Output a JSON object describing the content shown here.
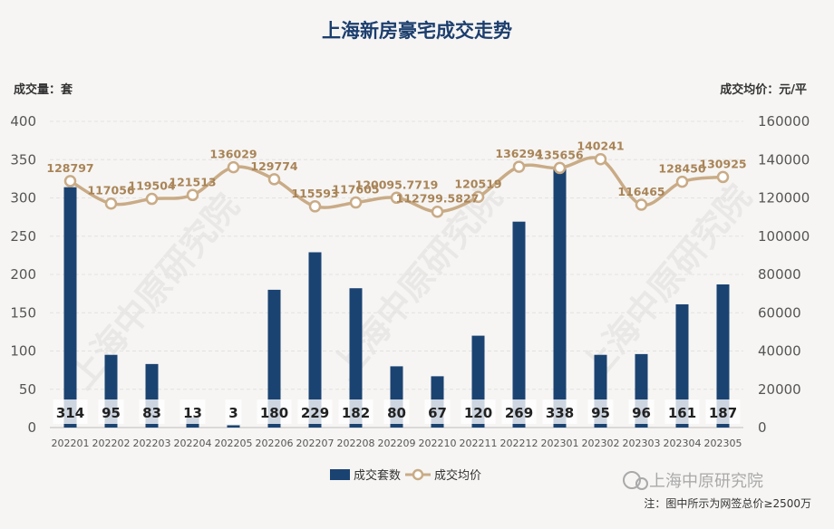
{
  "chart_data": {
    "type": "bar+line",
    "title": "上海新房豪宅成交走势",
    "categories": [
      "202201",
      "202202",
      "202203",
      "202204",
      "202205",
      "202206",
      "202207",
      "202208",
      "202209",
      "202210",
      "202211",
      "202212",
      "202301",
      "202302",
      "202303",
      "202304",
      "202305"
    ],
    "series": [
      {
        "name": "成交套数",
        "type": "bar",
        "axis": "left",
        "values": [
          314,
          95,
          83,
          13,
          3,
          180,
          229,
          182,
          80,
          67,
          120,
          269,
          338,
          95,
          96,
          161,
          187
        ],
        "labels": [
          "314",
          "95",
          "83",
          "13",
          "3",
          "180",
          "229",
          "182",
          "80",
          "67",
          "120",
          "269",
          "338",
          "95",
          "96",
          "161",
          "187"
        ],
        "color": "#1b4372"
      },
      {
        "name": "成交均价",
        "type": "line",
        "axis": "right",
        "values": [
          128797,
          117056,
          119504,
          121513,
          136029,
          129774,
          115593,
          117605,
          120095.7719,
          112799.5827,
          120519,
          136294,
          135656,
          140241,
          116465,
          128450,
          130925
        ],
        "labels": [
          "128797",
          "117056",
          "119504",
          "121513",
          "136029",
          "129774",
          "115593",
          "117605",
          "120095.7719",
          "112799.5827",
          "120519",
          "136294",
          "135656",
          "140241",
          "116465",
          "128450",
          "130925"
        ],
        "color": "#c9ab86"
      }
    ],
    "ylabel_left": "成交量：套",
    "ylabel_right": "成交均价：元/平",
    "ylim_left": [
      0,
      400
    ],
    "ylim_right": [
      0,
      160000
    ],
    "yticks_left": [
      "0",
      "50",
      "100",
      "150",
      "200",
      "250",
      "300",
      "350",
      "400"
    ],
    "yticks_right": [
      "0",
      "20000",
      "40000",
      "60000",
      "80000",
      "100000",
      "120000",
      "140000",
      "160000"
    ],
    "grid": true,
    "legend": "bottom-center",
    "legend_labels": [
      "成交套数",
      "成交均价"
    ]
  },
  "watermark": "上海中原研究院",
  "brand": "上海中原研究院",
  "note": "注：图中所示为网签总价≥2500万",
  "colors": {
    "bar": "#1b4372",
    "line": "#c9ab86",
    "price_label": "#a98457",
    "title": "#1c3e6e"
  }
}
